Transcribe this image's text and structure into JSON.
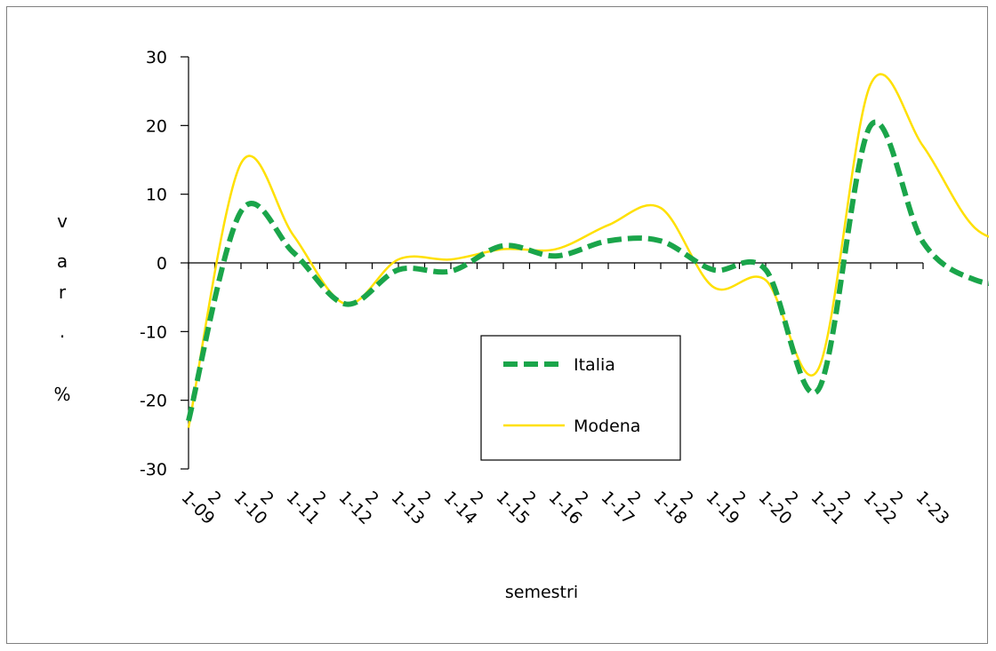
{
  "chart_data": {
    "type": "line",
    "xlabel": "semestri",
    "ylabel": "var. %",
    "ylabel_chars": [
      "v",
      "a",
      "r",
      ".",
      "%"
    ],
    "ylim": [
      -30,
      30
    ],
    "yticks": [
      -30,
      -20,
      -10,
      0,
      10,
      20,
      30
    ],
    "ytick_labels": [
      "-30",
      "-20",
      "-10",
      "0",
      "10",
      "20",
      "30"
    ],
    "x_tick_labels": [
      "1-09",
      "2",
      "1-10",
      "2",
      "1-11",
      "2",
      "1-12",
      "2",
      "1-13",
      "2",
      "1-14",
      "2",
      "1-15",
      "2",
      "1-16",
      "2",
      "1-17",
      "2",
      "1-18",
      "2",
      "1-19",
      "2",
      "1-20",
      "2",
      "1-21",
      "2",
      "1-22",
      "2",
      "1-23"
    ],
    "grid": false,
    "legend_position": "center-right",
    "series": [
      {
        "name": "Italia",
        "color": "#1aa54a",
        "style": "dashed",
        "values": [
          -23,
          7.5,
          1.5,
          -6,
          -1,
          -1.2,
          2.5,
          1,
          3.2,
          3.2,
          -1,
          -1,
          -18.5,
          20,
          3,
          -2.5,
          -3
        ]
      },
      {
        "name": "Modena",
        "color": "#ffe000",
        "style": "solid",
        "values": [
          -24,
          14.5,
          4,
          -6,
          0.5,
          0.5,
          2,
          2,
          5.5,
          8,
          -3.5,
          -2.5,
          -15.5,
          26,
          17,
          5,
          3
        ]
      }
    ]
  }
}
